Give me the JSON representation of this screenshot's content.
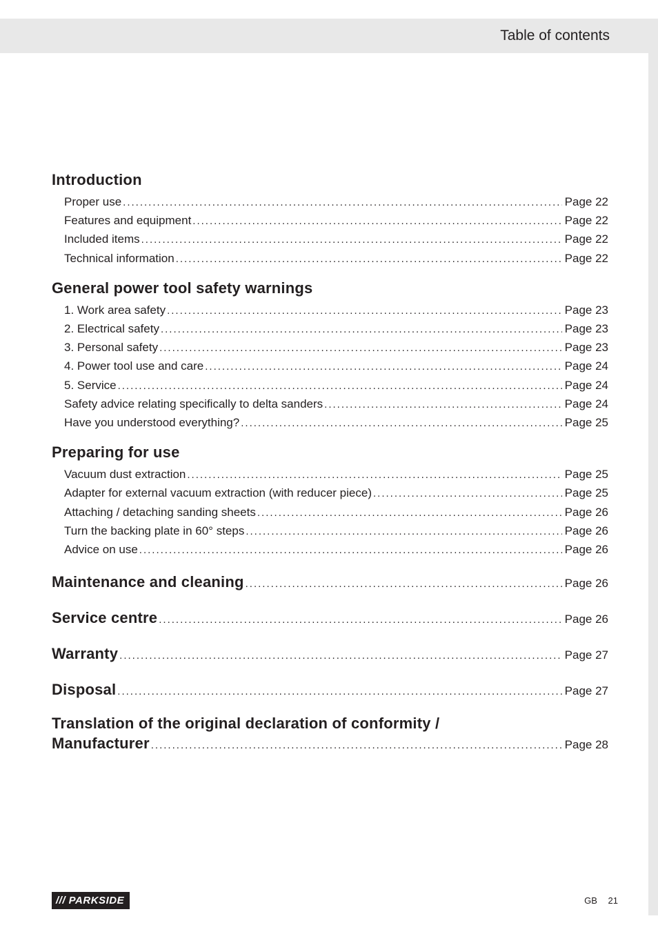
{
  "header": {
    "title": "Table of contents"
  },
  "colors": {
    "background": "#ffffff",
    "header_bg": "#e8e8e8",
    "text": "#231f20",
    "brand_bg": "#231f20",
    "brand_text": "#ffffff"
  },
  "sections": [
    {
      "heading": "Introduction",
      "items": [
        {
          "label": "Proper use",
          "page": "Page  22"
        },
        {
          "label": "Features and equipment",
          "page": "Page  22"
        },
        {
          "label": "Included items",
          "page": "Page  22"
        },
        {
          "label": "Technical information",
          "page": "Page  22"
        }
      ]
    },
    {
      "heading": "General power tool safety warnings",
      "items": [
        {
          "label": "1. Work area safety",
          "page": "Page  23"
        },
        {
          "label": "2. Electrical safety",
          "page": "Page  23"
        },
        {
          "label": "3. Personal safety",
          "page": "Page  23"
        },
        {
          "label": "4. Power tool use and care",
          "page": "Page  24"
        },
        {
          "label": "5. Service",
          "page": "Page  24"
        },
        {
          "label": "Safety advice relating specifically to delta sanders",
          "page": "Page  24"
        },
        {
          "label": "Have you understood everything?",
          "page": "Page  25"
        }
      ]
    },
    {
      "heading": "Preparing for use",
      "items": [
        {
          "label": "Vacuum dust extraction",
          "page": "Page  25"
        },
        {
          "label": "Adapter for external vacuum extraction (with reducer piece)",
          "page": "Page  25"
        },
        {
          "label": "Attaching / detaching sanding sheets",
          "page": "Page  26"
        },
        {
          "label": "Turn the backing plate in 60° steps",
          "page": "Page  26"
        },
        {
          "label": "Advice on use",
          "page": "Page  26"
        }
      ]
    }
  ],
  "standalone": [
    {
      "heading": "Maintenance and cleaning",
      "page": "Page  26"
    },
    {
      "heading": "Service centre",
      "page": "Page  26"
    },
    {
      "heading": "Warranty",
      "page": "Page  27"
    },
    {
      "heading": "Disposal",
      "page": "Page  27"
    }
  ],
  "multiline": {
    "line1": "Translation of the original declaration of conformity /",
    "line2_heading": "Manufacturer",
    "page": "Page  28"
  },
  "footer": {
    "brand": "/// PARKSIDE",
    "country": "GB",
    "page_number": "21"
  }
}
